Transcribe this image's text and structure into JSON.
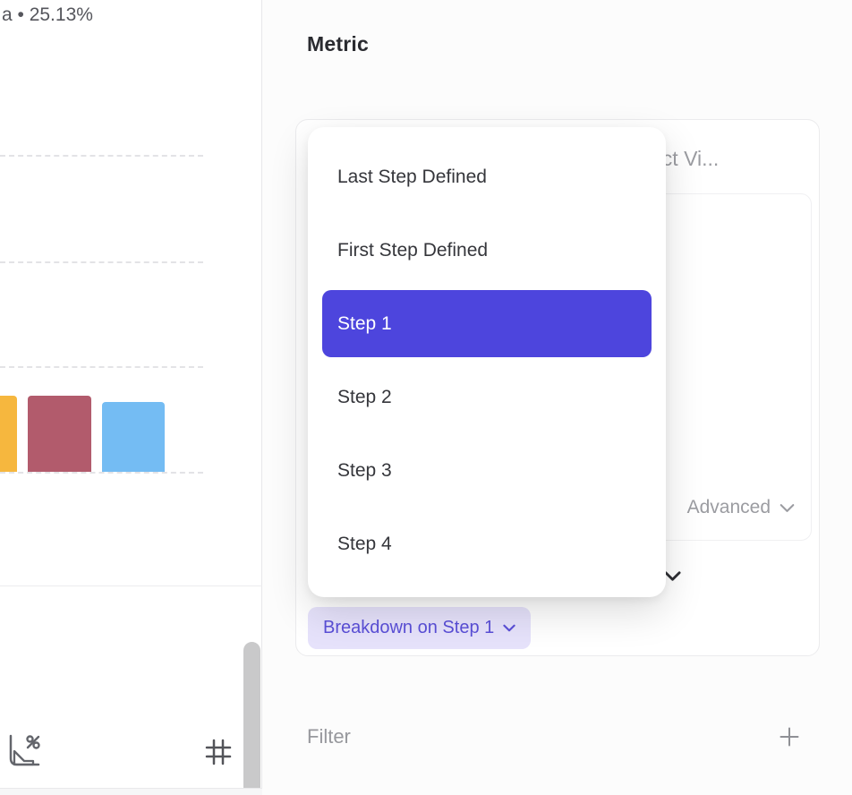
{
  "colors": {
    "accent_purple": "#4d45dd",
    "pill_bg": "#e6e2fb",
    "pill_text": "#5a4fd8",
    "muted_text": "#9b9ca1",
    "dark_text": "#2a2b30"
  },
  "left_chart": {
    "legend_fragment": "a • 25.13%",
    "bars": [
      {
        "name": "bar-yellow",
        "color": "#f6b73e"
      },
      {
        "name": "bar-red",
        "color": "#b25b6c"
      },
      {
        "name": "bar-blue",
        "color": "#74bcf3"
      }
    ],
    "toolbar_icons": [
      "conversion-chart-icon",
      "number-grid-icon"
    ]
  },
  "right_panel": {
    "heading": "Metric",
    "card": {
      "event_truncated_text": "uct Vi...",
      "advanced_label": "Advanced",
      "breakdown_pill_label": "Breakdown on Step 1"
    },
    "dropdown": {
      "items": [
        {
          "label": "Last Step Defined",
          "selected": false
        },
        {
          "label": "First Step Defined",
          "selected": false
        },
        {
          "label": "Step 1",
          "selected": true
        },
        {
          "label": "Step 2",
          "selected": false
        },
        {
          "label": "Step 3",
          "selected": false
        },
        {
          "label": "Step 4",
          "selected": false
        }
      ]
    },
    "filter": {
      "label": "Filter",
      "add_icon": "plus-icon"
    }
  }
}
